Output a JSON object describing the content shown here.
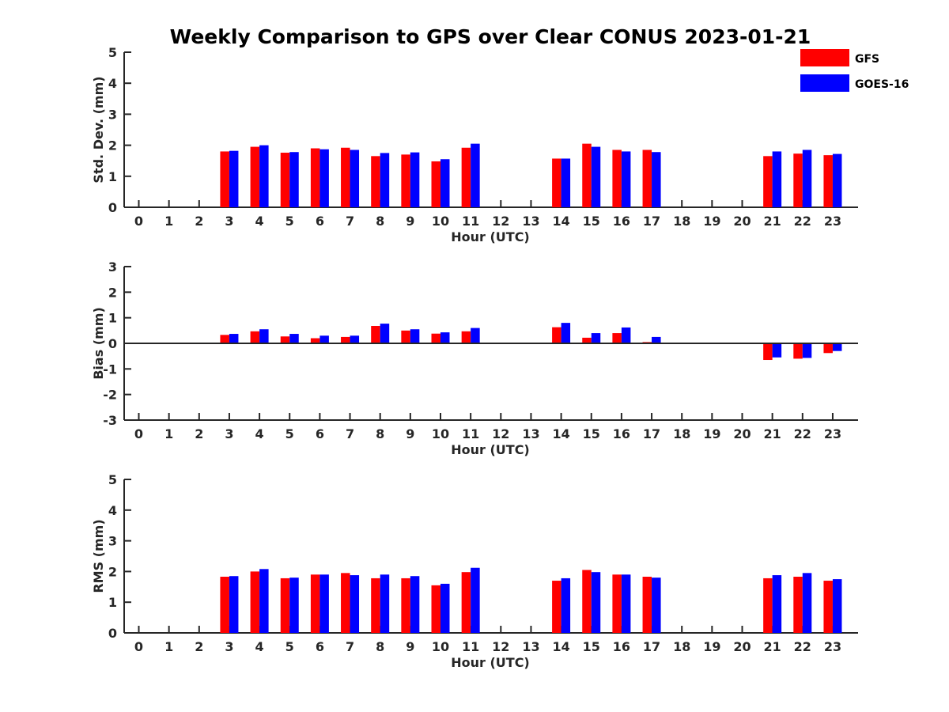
{
  "chart_data": {
    "type": "bar",
    "title": "Weekly Comparison to GPS over Clear CONUS 2023-01-21",
    "legend": {
      "placement": "top-right",
      "entries": [
        "GFS",
        "GOES-16"
      ]
    },
    "colors": {
      "GFS": "#ff0000",
      "GOES-16": "#0000ff",
      "axis": "#262626",
      "title": "#000000"
    },
    "categories": [
      "0",
      "1",
      "2",
      "3",
      "4",
      "5",
      "6",
      "7",
      "8",
      "9",
      "10",
      "11",
      "12",
      "13",
      "14",
      "15",
      "16",
      "17",
      "18",
      "19",
      "20",
      "21",
      "22",
      "23"
    ],
    "panels": [
      {
        "ylabel": "Std. Dev. (mm)",
        "xlabel": "Hour (UTC)",
        "ylim": [
          0,
          5
        ],
        "yticks": [
          "0",
          "1",
          "2",
          "3",
          "4",
          "5"
        ],
        "grid": false,
        "zero_line": false,
        "series": [
          {
            "name": "GFS",
            "values": [
              null,
              null,
              null,
              1.8,
              1.95,
              1.76,
              1.9,
              1.92,
              1.65,
              1.7,
              1.48,
              1.92,
              null,
              null,
              1.57,
              2.05,
              1.85,
              1.85,
              null,
              null,
              null,
              1.65,
              1.73,
              1.68
            ]
          },
          {
            "name": "GOES-16",
            "values": [
              null,
              null,
              null,
              1.82,
              2.0,
              1.78,
              1.87,
              1.85,
              1.75,
              1.77,
              1.55,
              2.05,
              null,
              null,
              1.57,
              1.95,
              1.8,
              1.78,
              null,
              null,
              null,
              1.8,
              1.85,
              1.72
            ]
          }
        ]
      },
      {
        "ylabel": "Bias (mm)",
        "xlabel": "Hour (UTC)",
        "ylim": [
          -3,
          3
        ],
        "yticks": [
          "-3",
          "-2",
          "-1",
          "0",
          "1",
          "2",
          "3"
        ],
        "grid": false,
        "zero_line": true,
        "series": [
          {
            "name": "GFS",
            "values": [
              null,
              null,
              null,
              0.33,
              0.47,
              0.27,
              0.2,
              0.25,
              0.68,
              0.5,
              0.38,
              0.47,
              null,
              null,
              0.63,
              0.22,
              0.4,
              0.05,
              null,
              null,
              null,
              -0.65,
              -0.6,
              -0.38
            ]
          },
          {
            "name": "GOES-16",
            "values": [
              null,
              null,
              null,
              0.37,
              0.55,
              0.37,
              0.3,
              0.3,
              0.77,
              0.55,
              0.43,
              0.6,
              null,
              null,
              0.8,
              0.4,
              0.62,
              0.25,
              null,
              null,
              null,
              -0.55,
              -0.57,
              -0.3
            ]
          }
        ]
      },
      {
        "ylabel": "RMS (mm)",
        "xlabel": "Hour (UTC)",
        "ylim": [
          0,
          5
        ],
        "yticks": [
          "0",
          "1",
          "2",
          "3",
          "4",
          "5"
        ],
        "grid": false,
        "zero_line": false,
        "series": [
          {
            "name": "GFS",
            "values": [
              null,
              null,
              null,
              1.83,
              2.0,
              1.78,
              1.9,
              1.95,
              1.78,
              1.78,
              1.55,
              1.98,
              null,
              null,
              1.7,
              2.05,
              1.9,
              1.83,
              null,
              null,
              null,
              1.78,
              1.83,
              1.7
            ]
          },
          {
            "name": "GOES-16",
            "values": [
              null,
              null,
              null,
              1.85,
              2.08,
              1.8,
              1.9,
              1.88,
              1.9,
              1.85,
              1.6,
              2.12,
              null,
              null,
              1.78,
              1.98,
              1.9,
              1.8,
              null,
              null,
              null,
              1.88,
              1.95,
              1.75
            ]
          }
        ]
      }
    ]
  }
}
